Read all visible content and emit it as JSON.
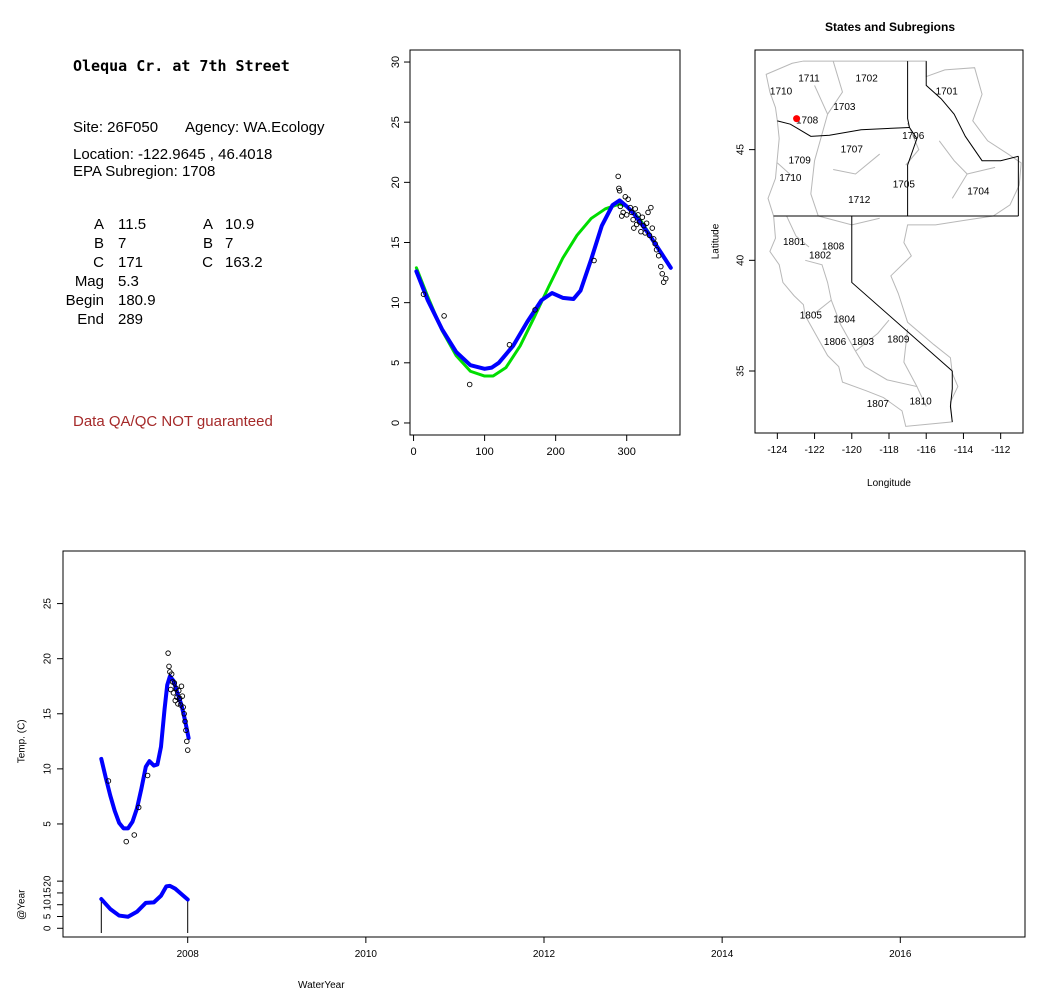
{
  "info": {
    "title": "Olequa Cr. at 7th Street",
    "site": "Site: 26F050",
    "agency": "Agency: WA.Ecology",
    "location": "Location: -122.9645 , 46.4018",
    "subregion": "EPA Subregion: 1708",
    "params_left": [
      {
        "label": "A",
        "value": "11.5"
      },
      {
        "label": "B",
        "value": "7"
      },
      {
        "label": "C",
        "value": "171"
      },
      {
        "label": "Mag",
        "value": "5.3"
      },
      {
        "label": "Begin",
        "value": "180.9"
      },
      {
        "label": "End",
        "value": "289"
      }
    ],
    "params_right": [
      {
        "label": "A",
        "value": "10.9"
      },
      {
        "label": "B",
        "value": "7"
      },
      {
        "label": "C",
        "value": "163.2"
      }
    ],
    "qa_note": "Data QA/QC NOT guaranteed"
  },
  "colors": {
    "fit_blue": "#0000ff",
    "fit_green": "#00dd00",
    "site_marker": "#ff0000",
    "qa_note": "#a52a2a",
    "boundary_gray": "#b8b8b8"
  },
  "chart_data": [
    {
      "id": "annual-cycle",
      "type": "scatter",
      "title": "",
      "xlabel": "",
      "ylabel": "",
      "xlim": [
        -5,
        375
      ],
      "ylim": [
        -1,
        31
      ],
      "x_ticks": [
        0,
        100,
        200,
        300
      ],
      "y_ticks": [
        0,
        5,
        10,
        15,
        20,
        25,
        30
      ],
      "points": [
        [
          14,
          10.7
        ],
        [
          43,
          8.9
        ],
        [
          79,
          3.2
        ],
        [
          135,
          6.5
        ],
        [
          171,
          9.4
        ],
        [
          254,
          13.5
        ],
        [
          288,
          20.5
        ],
        [
          289,
          19.5
        ],
        [
          290,
          19.3
        ],
        [
          291,
          18.0
        ],
        [
          293,
          17.2
        ],
        [
          295,
          17.5
        ],
        [
          298,
          18.8
        ],
        [
          300,
          17.3
        ],
        [
          302,
          18.6
        ],
        [
          305,
          17.9
        ],
        [
          307,
          17.5
        ],
        [
          309,
          16.9
        ],
        [
          310,
          16.2
        ],
        [
          312,
          17.8
        ],
        [
          314,
          16.5
        ],
        [
          316,
          17.3
        ],
        [
          318,
          16.7
        ],
        [
          320,
          15.9
        ],
        [
          322,
          17.1
        ],
        [
          324,
          16.4
        ],
        [
          326,
          15.8
        ],
        [
          328,
          16.6
        ],
        [
          330,
          17.5
        ],
        [
          332,
          15.6
        ],
        [
          334,
          17.9
        ],
        [
          336,
          16.2
        ],
        [
          338,
          15.3
        ],
        [
          340,
          14.9
        ],
        [
          342,
          14.4
        ],
        [
          345,
          13.9
        ],
        [
          348,
          13.0
        ],
        [
          350,
          12.4
        ],
        [
          352,
          11.7
        ],
        [
          355,
          12.0
        ]
      ],
      "series": [
        {
          "name": "",
          "color": "#00dd00",
          "x": [
            4,
            20,
            40,
            60,
            80,
            100,
            112,
            130,
            150,
            170,
            190,
            210,
            230,
            250,
            270,
            290,
            300,
            310,
            320,
            330,
            340,
            350,
            362
          ],
          "values": [
            12.9,
            10.5,
            7.7,
            5.6,
            4.3,
            3.9,
            3.9,
            4.6,
            6.4,
            8.8,
            11.3,
            13.7,
            15.6,
            17.0,
            17.8,
            18.2,
            18.0,
            17.5,
            16.8,
            15.9,
            14.9,
            13.9,
            12.9
          ]
        },
        {
          "name": "",
          "color": "#0000ff",
          "x": [
            4,
            20,
            40,
            60,
            80,
            100,
            110,
            120,
            140,
            160,
            180,
            195,
            210,
            225,
            235,
            250,
            265,
            280,
            290,
            300,
            310,
            320,
            330,
            340,
            350,
            362
          ],
          "values": [
            12.6,
            10.2,
            7.8,
            5.9,
            4.8,
            4.5,
            4.6,
            5.0,
            6.4,
            8.4,
            10.2,
            10.8,
            10.4,
            10.3,
            11.0,
            13.6,
            16.4,
            18.1,
            18.5,
            18.0,
            17.4,
            16.6,
            15.8,
            14.9,
            14.0,
            12.9
          ]
        }
      ]
    },
    {
      "id": "subregion-map",
      "type": "map",
      "title": "States and Subregions",
      "xlabel": "Longitude",
      "ylabel": "Latitude",
      "xlim": [
        -125.2,
        -110.8
      ],
      "ylim": [
        32.2,
        49.5
      ],
      "x_ticks": [
        -124,
        -122,
        -120,
        -118,
        -116,
        -114,
        -112
      ],
      "y_ticks": [
        35,
        40,
        45
      ],
      "site": {
        "lon": -122.9645,
        "lat": 46.4018
      },
      "region_labels": [
        {
          "text": "1711",
          "lon": -122.3,
          "lat": 48.2
        },
        {
          "text": "1702",
          "lon": -119.2,
          "lat": 48.2
        },
        {
          "text": "1701",
          "lon": -114.9,
          "lat": 47.6
        },
        {
          "text": "1710",
          "lon": -123.8,
          "lat": 47.6
        },
        {
          "text": "1703",
          "lon": -120.4,
          "lat": 46.9
        },
        {
          "text": "1708",
          "lon": -122.4,
          "lat": 46.3
        },
        {
          "text": "1706",
          "lon": -116.7,
          "lat": 45.6
        },
        {
          "text": "1707",
          "lon": -120.0,
          "lat": 45.0
        },
        {
          "text": "1709",
          "lon": -122.8,
          "lat": 44.5
        },
        {
          "text": "1710",
          "lon": -123.3,
          "lat": 43.7
        },
        {
          "text": "1705",
          "lon": -117.2,
          "lat": 43.4
        },
        {
          "text": "1704",
          "lon": -113.2,
          "lat": 43.1
        },
        {
          "text": "1712",
          "lon": -119.6,
          "lat": 42.7
        },
        {
          "text": "1801",
          "lon": -123.1,
          "lat": 40.8
        },
        {
          "text": "1808",
          "lon": -121.0,
          "lat": 40.6
        },
        {
          "text": "1802",
          "lon": -121.7,
          "lat": 40.2
        },
        {
          "text": "1805",
          "lon": -122.2,
          "lat": 37.5
        },
        {
          "text": "1804",
          "lon": -120.4,
          "lat": 37.3
        },
        {
          "text": "1806",
          "lon": -120.9,
          "lat": 36.3
        },
        {
          "text": "1803",
          "lon": -119.4,
          "lat": 36.3
        },
        {
          "text": "1809",
          "lon": -117.5,
          "lat": 36.4
        },
        {
          "text": "1807",
          "lon": -118.6,
          "lat": 33.5
        },
        {
          "text": "1810",
          "lon": -116.3,
          "lat": 33.6
        }
      ]
    },
    {
      "id": "temperature-timeseries",
      "type": "scatter",
      "title": "",
      "xlabel": "WaterYear",
      "ylabel": "Temp. (C)",
      "xlim": [
        2006.6,
        2017.4
      ],
      "ylim": [
        3,
        29.5
      ],
      "x_ticks": [
        2008,
        2010,
        2012,
        2014,
        2016
      ],
      "y_ticks": [
        5,
        10,
        15,
        20,
        25
      ],
      "points": [
        [
          2007.11,
          8.9
        ],
        [
          2007.31,
          3.4
        ],
        [
          2007.4,
          4.0
        ],
        [
          2007.45,
          6.5
        ],
        [
          2007.55,
          9.4
        ],
        [
          2007.78,
          20.5
        ],
        [
          2007.79,
          19.3
        ],
        [
          2007.8,
          18.8
        ],
        [
          2007.81,
          17.2
        ],
        [
          2007.82,
          18.6
        ],
        [
          2007.83,
          17.9
        ],
        [
          2007.84,
          16.9
        ],
        [
          2007.85,
          17.8
        ],
        [
          2007.86,
          16.2
        ],
        [
          2007.87,
          17.3
        ],
        [
          2007.88,
          16.5
        ],
        [
          2007.89,
          15.9
        ],
        [
          2007.9,
          17.1
        ],
        [
          2007.91,
          16.4
        ],
        [
          2007.92,
          15.8
        ],
        [
          2007.93,
          17.5
        ],
        [
          2007.94,
          16.6
        ],
        [
          2007.95,
          15.6
        ],
        [
          2007.96,
          15.0
        ],
        [
          2007.97,
          14.3
        ],
        [
          2007.98,
          13.5
        ],
        [
          2007.99,
          12.5
        ],
        [
          2008.0,
          11.7
        ]
      ],
      "series": [
        {
          "name": "",
          "color": "#0000ff",
          "x": [
            2007.03,
            2007.08,
            2007.13,
            2007.18,
            2007.23,
            2007.28,
            2007.33,
            2007.38,
            2007.43,
            2007.48,
            2007.53,
            2007.57,
            2007.62,
            2007.66,
            2007.7,
            2007.74,
            2007.77,
            2007.8,
            2007.84,
            2007.88,
            2007.93,
            2007.97,
            2008.01
          ],
          "values": [
            10.9,
            9.2,
            7.6,
            6.2,
            5.1,
            4.6,
            4.6,
            5.2,
            6.4,
            8.2,
            10.2,
            10.7,
            10.3,
            10.4,
            12.0,
            15.4,
            17.6,
            18.4,
            18.0,
            17.0,
            15.8,
            14.4,
            12.8
          ]
        }
      ]
    },
    {
      "id": "at-year-strip",
      "type": "line",
      "title": "",
      "xlabel": "",
      "ylabel": "@Year",
      "ylim": [
        -2,
        26
      ],
      "y_ticks": [
        0,
        5,
        10,
        15,
        20
      ],
      "series": [
        {
          "name": "",
          "color": "#0000ff",
          "x": [
            2007.03,
            2007.13,
            2007.23,
            2007.33,
            2007.43,
            2007.53,
            2007.62,
            2007.7,
            2007.76,
            2007.8,
            2007.86,
            2007.93,
            2008.0
          ],
          "values": [
            12.4,
            8.2,
            5.4,
            4.9,
            7.0,
            10.8,
            11.0,
            13.8,
            17.8,
            18.0,
            16.8,
            14.5,
            12.2
          ]
        }
      ]
    }
  ]
}
